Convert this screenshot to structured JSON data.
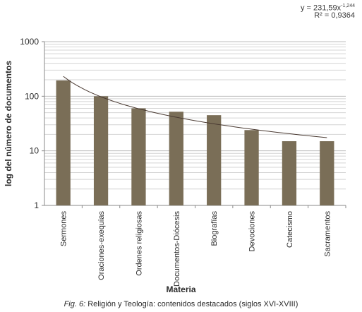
{
  "chart_data": {
    "type": "bar",
    "categories": [
      "Sermones",
      "Oraciones-exequias",
      "Ordenes religiosas",
      "Documentos-Diócesis",
      "Biografías",
      "Devociones",
      "Catecismo",
      "Sacramentos"
    ],
    "values": [
      195,
      100,
      60,
      52,
      45,
      24,
      15,
      15
    ],
    "xlabel": "Materia",
    "ylabel": "log del número de documentos",
    "yscale": "log",
    "ylim": [
      1,
      1000
    ],
    "yticks": [
      "1",
      "10",
      "100",
      "1000"
    ],
    "grid": true,
    "bar_color": "#7a6e57",
    "trendline": {
      "type": "power",
      "a": 231.59,
      "b": -1.244,
      "equation_prefix": "y = 231,59x",
      "equation_exponent": "-1,244",
      "r2_label": "R² = 0,9364"
    }
  },
  "caption": {
    "fig_label": "Fig. 6:",
    "text": "Religión y Teología: contenidos destacados (siglos XVI-XVIII)"
  }
}
